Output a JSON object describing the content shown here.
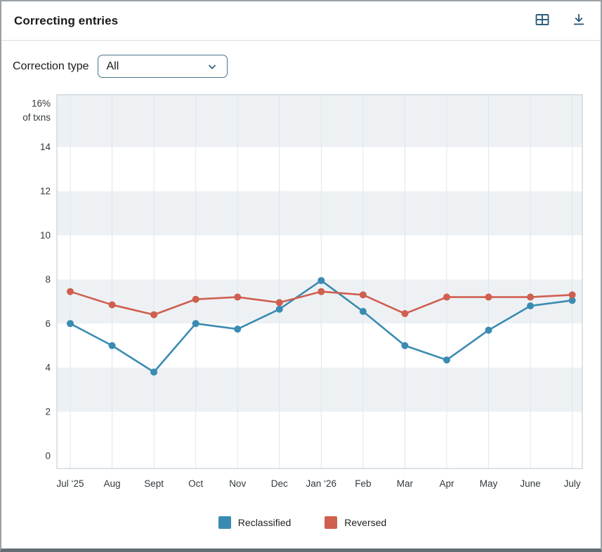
{
  "header": {
    "title": "Correcting entries",
    "icons": [
      {
        "name": "table-view-icon"
      },
      {
        "name": "download-icon"
      }
    ]
  },
  "controls": {
    "label": "Correction type",
    "dropdown_value": "All"
  },
  "chart_data": {
    "type": "line",
    "title": "Correcting entries",
    "categories": [
      "Jul ‘25",
      "Aug",
      "Sept",
      "Oct",
      "Nov",
      "Dec",
      "Jan ‘26",
      "Feb",
      "Mar",
      "Apr",
      "May",
      "June",
      "July"
    ],
    "series": [
      {
        "name": "Reclassified",
        "color": "#3a8bb2",
        "values": [
          6.0,
          5.0,
          3.8,
          6.0,
          5.75,
          6.65,
          7.95,
          6.55,
          5.0,
          4.35,
          5.7,
          6.8,
          7.05
        ]
      },
      {
        "name": "Reversed",
        "color": "#cf5f4f",
        "values": [
          7.45,
          6.85,
          6.4,
          7.1,
          7.2,
          6.95,
          7.45,
          7.3,
          6.45,
          7.2,
          7.2,
          7.2,
          7.3
        ]
      }
    ],
    "y_axis_top_label": "16%",
    "y_axis_unit_label": "of txns",
    "y_ticks": [
      14,
      12,
      10,
      8,
      6,
      4,
      2,
      0
    ],
    "ylim": [
      0,
      16
    ],
    "grid": "vertical-only",
    "shaded_bands": [
      [
        14,
        16.45
      ],
      [
        10,
        12
      ],
      [
        6,
        8
      ],
      [
        2,
        4
      ]
    ],
    "legend_position": "bottom",
    "colors": {
      "band": "#eef1f4",
      "gridline": "#dee6eb",
      "plot_border": "#c4d1d9",
      "axis_text": "#33393d",
      "icon_teal": "#2e5f7b"
    }
  }
}
